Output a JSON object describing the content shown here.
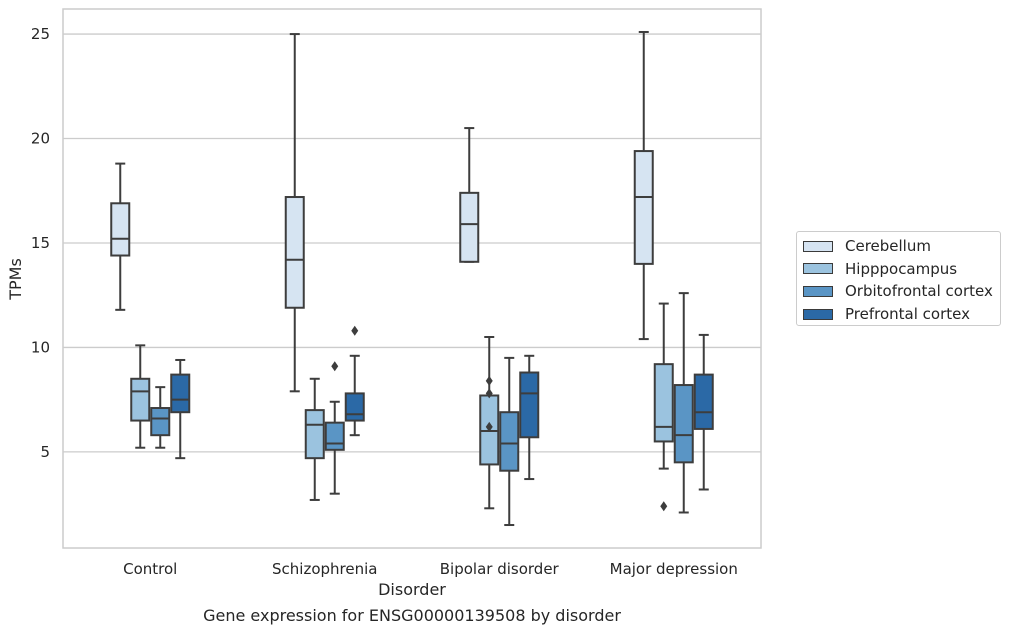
{
  "caption": "Gene expression for ENSG00000139508 by disorder",
  "chart_data": {
    "type": "box",
    "xlabel": "Disorder",
    "ylabel": "TPMs",
    "ylim": [
      0.4,
      26.2
    ],
    "yticks": [
      5,
      10,
      15,
      20,
      25
    ],
    "grid": "horizontal",
    "legend_position": "right",
    "categories": [
      "Control",
      "Schizophrenia",
      "Bipolar disorder",
      "Major depression"
    ],
    "series": [
      {
        "name": "Cerebellum",
        "color": "#d6e4f2",
        "boxes": [
          {
            "whislo": 11.8,
            "q1": 14.4,
            "med": 15.2,
            "q3": 16.9,
            "whishi": 18.8,
            "fliers": []
          },
          {
            "whislo": 7.9,
            "q1": 11.9,
            "med": 14.2,
            "q3": 17.2,
            "whishi": 25.0,
            "fliers": []
          },
          {
            "whislo": 14.1,
            "q1": 14.1,
            "med": 15.9,
            "q3": 17.4,
            "whishi": 20.5,
            "fliers": []
          },
          {
            "whislo": 10.4,
            "q1": 14.0,
            "med": 17.2,
            "q3": 19.4,
            "whishi": 25.1,
            "fliers": []
          }
        ]
      },
      {
        "name": "Hipppocampus",
        "color": "#9bc3df",
        "boxes": [
          {
            "whislo": 5.2,
            "q1": 6.5,
            "med": 7.9,
            "q3": 8.5,
            "whishi": 10.1,
            "fliers": []
          },
          {
            "whislo": 2.7,
            "q1": 4.7,
            "med": 6.3,
            "q3": 7.0,
            "whishi": 8.5,
            "fliers": []
          },
          {
            "whislo": 2.3,
            "q1": 4.4,
            "med": 6.0,
            "q3": 7.7,
            "whishi": 10.5,
            "fliers": [
              8.4,
              7.8,
              6.2
            ]
          },
          {
            "whislo": 4.2,
            "q1": 5.5,
            "med": 6.2,
            "q3": 9.2,
            "whishi": 12.1,
            "fliers": [
              2.4
            ]
          }
        ]
      },
      {
        "name": "Orbitofrontal cortex",
        "color": "#5a95c5",
        "boxes": [
          {
            "whislo": 5.2,
            "q1": 5.8,
            "med": 6.6,
            "q3": 7.1,
            "whishi": 8.1,
            "fliers": []
          },
          {
            "whislo": 3.0,
            "q1": 5.1,
            "med": 5.4,
            "q3": 6.4,
            "whishi": 7.4,
            "fliers": [
              9.1
            ]
          },
          {
            "whislo": 1.5,
            "q1": 4.1,
            "med": 5.4,
            "q3": 6.9,
            "whishi": 9.5,
            "fliers": []
          },
          {
            "whislo": 2.1,
            "q1": 4.5,
            "med": 5.8,
            "q3": 8.2,
            "whishi": 12.6,
            "fliers": []
          }
        ]
      },
      {
        "name": "Prefrontal cortex",
        "color": "#2b69a6",
        "boxes": [
          {
            "whislo": 4.7,
            "q1": 6.9,
            "med": 7.5,
            "q3": 8.7,
            "whishi": 9.4,
            "fliers": []
          },
          {
            "whislo": 5.8,
            "q1": 6.5,
            "med": 6.8,
            "q3": 7.8,
            "whishi": 9.6,
            "fliers": [
              10.8
            ]
          },
          {
            "whislo": 3.7,
            "q1": 5.7,
            "med": 7.8,
            "q3": 8.8,
            "whishi": 9.6,
            "fliers": []
          },
          {
            "whislo": 3.2,
            "q1": 6.1,
            "med": 6.9,
            "q3": 8.7,
            "whishi": 10.6,
            "fliers": []
          }
        ]
      }
    ]
  }
}
